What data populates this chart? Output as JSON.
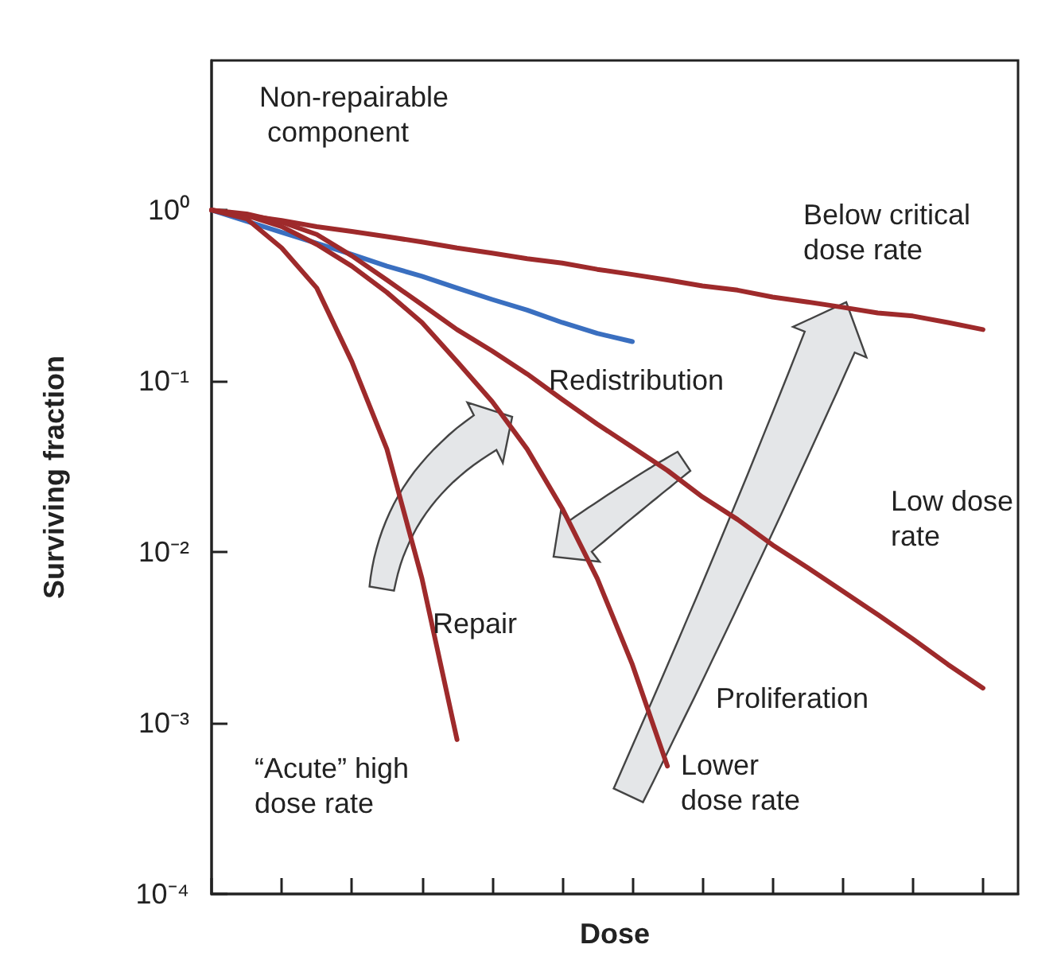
{
  "chart_data": {
    "type": "line",
    "xlabel": "Dose",
    "ylabel": "Surviving fraction",
    "log": "y",
    "marker": "none",
    "line_style": "solid",
    "tick_labels": "y",
    "categories": [
      null,
      null,
      null,
      null,
      null,
      null,
      null,
      null,
      null,
      null,
      null,
      null,
      null,
      null,
      null,
      null,
      null,
      null,
      null,
      null,
      null,
      null,
      null,
      null
    ],
    "ylim": [
      0.0001,
      7.5
    ],
    "yticks": [
      {
        "value": 1,
        "label": "10⁰"
      },
      {
        "value": 0.1,
        "label": "10⁻¹"
      },
      {
        "value": 0.01,
        "label": "10⁻²"
      },
      {
        "value": 0.001,
        "label": "10⁻³"
      },
      {
        "value": 0.0001,
        "label": "10⁻⁴"
      }
    ],
    "series": [
      {
        "name": "Non-repairable component",
        "color": "#3a6fc0",
        "values": [
          1,
          0.86,
          0.74,
          0.64,
          0.55,
          0.47,
          0.41,
          0.35,
          0.3,
          0.26,
          0.22,
          0.19,
          0.17,
          null,
          null,
          null,
          null,
          null,
          null,
          null,
          null,
          null,
          null,
          null
        ]
      },
      {
        "name": "Below critical dose rate",
        "color": "#9e2a2b",
        "values": [
          1,
          0.93,
          0.87,
          0.8,
          0.75,
          0.7,
          0.65,
          0.6,
          0.56,
          0.52,
          0.49,
          0.45,
          0.42,
          0.39,
          0.36,
          0.34,
          0.31,
          0.29,
          0.27,
          0.25,
          0.24,
          0.22,
          0.2,
          null
        ]
      },
      {
        "name": "Low dose rate",
        "color": "#9e2a2b",
        "values": [
          1,
          0.95,
          0.85,
          0.72,
          0.54,
          0.39,
          0.28,
          0.2,
          0.15,
          0.11,
          0.078,
          0.056,
          0.041,
          0.03,
          0.021,
          0.0155,
          0.011,
          0.0081,
          0.0059,
          0.0043,
          0.0031,
          0.0022,
          0.0016,
          null
        ]
      },
      {
        "name": "Lower dose rate",
        "color": "#9e2a2b",
        "values": [
          1,
          0.93,
          0.8,
          0.63,
          0.47,
          0.33,
          0.22,
          0.13,
          0.076,
          0.04,
          0.018,
          0.007,
          0.0022,
          0.00056,
          null,
          null,
          null,
          null,
          null,
          null,
          null,
          null,
          null,
          null
        ]
      },
      {
        "name": "“Acute” high dose rate",
        "color": "#9e2a2b",
        "values": [
          1,
          0.89,
          0.6,
          0.35,
          0.13,
          0.04,
          0.007,
          0.0008,
          null,
          null,
          null,
          null,
          null,
          null,
          null,
          null,
          null,
          null,
          null,
          null,
          null,
          null,
          null,
          null
        ]
      }
    ],
    "annotations": [
      "Redistribution",
      "Repair",
      "Proliferation"
    ]
  }
}
